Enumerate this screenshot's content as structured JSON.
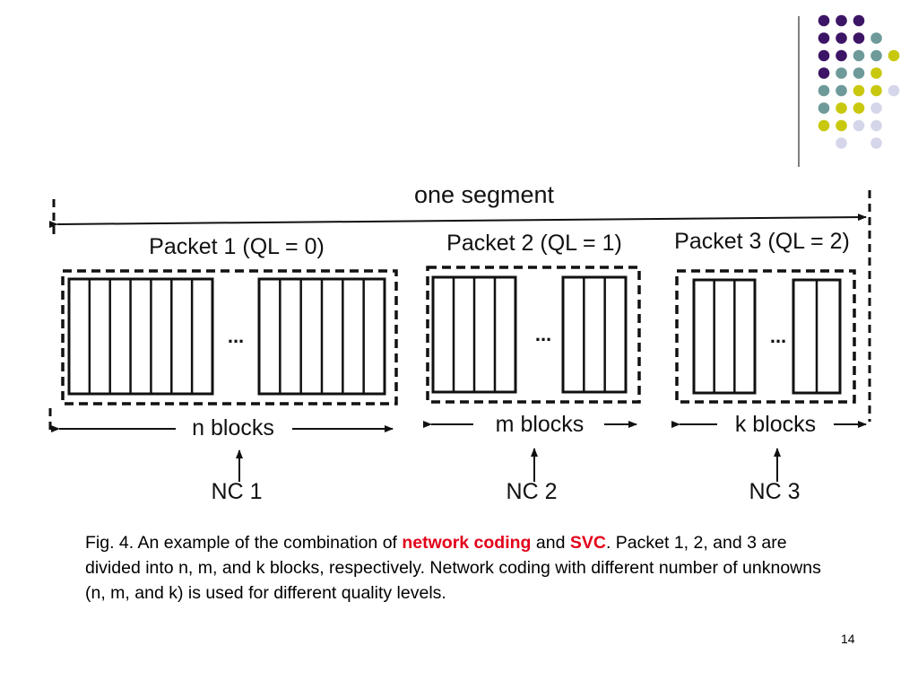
{
  "slide": {
    "page_number": "14",
    "decor_colors": {
      "purple": "#3d1566",
      "teal": "#6e9a9a",
      "yellow": "#c8c80e",
      "lavender": "#d6d6ea",
      "rule": "#555555"
    }
  },
  "diagram": {
    "segment_label": "one segment",
    "packets": [
      {
        "label": "Packet 1 (QL = 0)",
        "blocks_label": "n blocks",
        "nc_label": "NC 1",
        "ellipsis": "..."
      },
      {
        "label": "Packet 2 (QL = 1)",
        "blocks_label": "m blocks",
        "nc_label": "NC 2",
        "ellipsis": "..."
      },
      {
        "label": "Packet 3 (QL = 2)",
        "blocks_label": "k blocks",
        "nc_label": "NC 3",
        "ellipsis": "..."
      }
    ]
  },
  "caption": {
    "part1": "Fig. 4. An example of the combination of ",
    "highlight1": "network coding",
    "part2": " and ",
    "highlight2": "SVC",
    "part3": ". Packet 1, 2, and 3 are divided into n, m, and k blocks, respectively. Network coding with different number of unknowns (n, m, and k) is used for different quality levels."
  }
}
